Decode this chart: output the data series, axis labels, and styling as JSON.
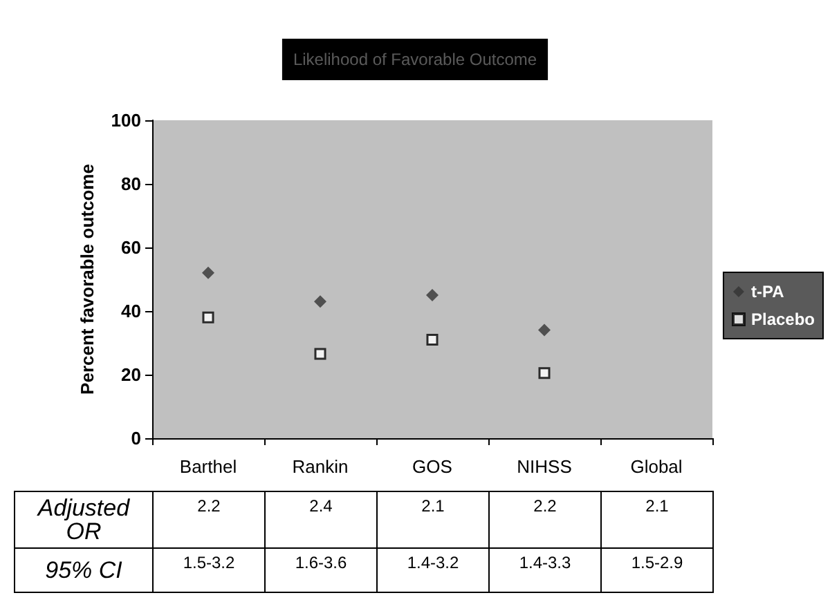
{
  "chart_data": {
    "type": "scatter",
    "title": "Likelihood of Favorable Outcome",
    "ylabel": "Percent favorable outcome",
    "categories": [
      "Barthel",
      "Rankin",
      "GOS",
      "NIHSS",
      "Global"
    ],
    "series": [
      {
        "name": "t-PA",
        "color": "#333333",
        "marker": "diamond",
        "values": [
          52,
          43,
          45,
          34,
          null
        ]
      },
      {
        "name": "Placebo",
        "color": "#ffffff",
        "marker": "square",
        "values": [
          38,
          26.5,
          31,
          20.5,
          null
        ]
      }
    ],
    "ylim": [
      0,
      100
    ],
    "yticks": [
      0,
      20,
      40,
      60,
      80,
      100
    ],
    "grid": false,
    "legend": "right",
    "annotations": [
      "Adjusted OR",
      "2.2",
      "2.4",
      "2.1",
      "2.2",
      "2.1",
      "95% CI",
      "1.5-3.2",
      "1.6-3.6",
      "1.4-3.2",
      "1.4-3.3",
      "1.5-2.9"
    ]
  }
}
